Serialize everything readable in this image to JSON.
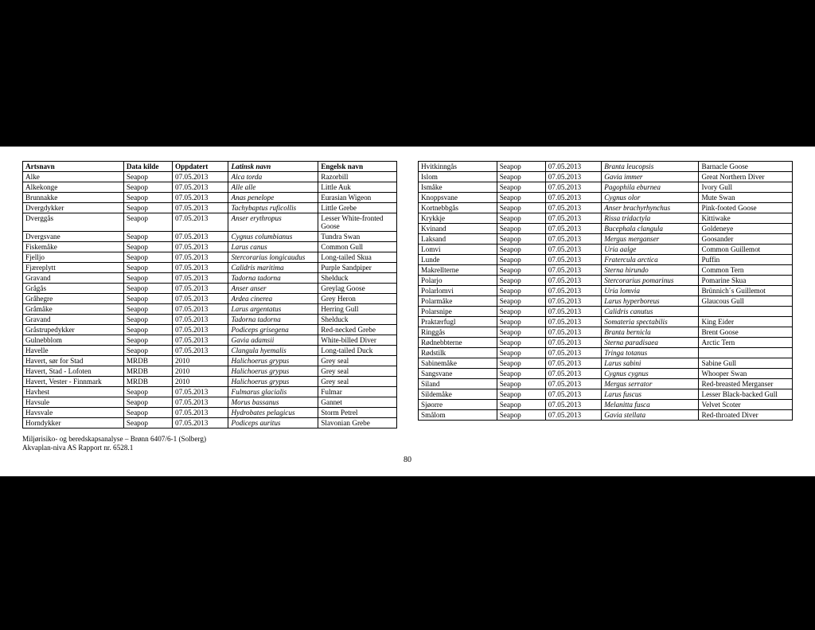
{
  "headers": [
    "Artsnavn",
    "Data kilde",
    "Oppdatert",
    "Latinsk navn",
    "Engelsk navn"
  ],
  "left": [
    [
      "Alke",
      "Seapop",
      "07.05.2013",
      "Alca torda",
      "Razorbill"
    ],
    [
      "Alkekonge",
      "Seapop",
      "07.05.2013",
      "Alle alle",
      "Little Auk"
    ],
    [
      "Brunnakke",
      "Seapop",
      "07.05.2013",
      "Anas penelope",
      "Eurasian Wigeon"
    ],
    [
      "Dvergdykker",
      "Seapop",
      "07.05.2013",
      "Tachybaptus ruficollis",
      "Little Grebe"
    ],
    [
      "Dverggås",
      "Seapop",
      "07.05.2013",
      "Anser erythropus",
      "Lesser White-fronted Goose"
    ],
    [
      "Dvergsvane",
      "Seapop",
      "07.05.2013",
      "Cygnus columbianus",
      "Tundra Swan"
    ],
    [
      "Fiskemåke",
      "Seapop",
      "07.05.2013",
      "Larus canus",
      "Common Gull"
    ],
    [
      "Fjelljo",
      "Seapop",
      "07.05.2013",
      "Stercorarius longicaudus",
      "Long-tailed Skua"
    ],
    [
      "Fjæreplytt",
      "Seapop",
      "07.05.2013",
      "Calidris maritima",
      "Purple Sandpiper"
    ],
    [
      "Gravand",
      "Seapop",
      "07.05.2013",
      "Tadorna tadorna",
      "Shelduck"
    ],
    [
      "Grågås",
      "Seapop",
      "07.05.2013",
      "Anser anser",
      "Greylag Goose"
    ],
    [
      "Gråhegre",
      "Seapop",
      "07.05.2013",
      "Ardea cinerea",
      "Grey Heron"
    ],
    [
      "Gråmåke",
      "Seapop",
      "07.05.2013",
      "Larus argentatus",
      "Herring Gull"
    ],
    [
      "Gravand",
      "Seapop",
      "07.05.2013",
      "Tadorna tadorna",
      "Shelduck"
    ],
    [
      "Gråstrupedykker",
      "Seapop",
      "07.05.2013",
      "Podiceps grisegena",
      "Red-necked Grebe"
    ],
    [
      "Gulnebblom",
      "Seapop",
      "07.05.2013",
      "Gavia adamsii",
      "White-billed Diver"
    ],
    [
      "Havelle",
      "Seapop",
      "07.05.2013",
      "Clangula hyemalis",
      "Long-tailed Duck"
    ],
    [
      "Havert, sør for Stad",
      "MRDB",
      "2010",
      "Halichoerus grypus",
      "Grey seal"
    ],
    [
      "Havert, Stad - Lofoten",
      "MRDB",
      "2010",
      "Halichoerus grypus",
      "Grey seal"
    ],
    [
      "Havert, Vester - Finnmark",
      "MRDB",
      "2010",
      "Halichoerus grypus",
      "Grey seal"
    ],
    [
      "Havhest",
      "Seapop",
      "07.05.2013",
      "Fulmarus glacialis",
      "Fulmar"
    ],
    [
      "Havsule",
      "Seapop",
      "07.05.2013",
      "Morus bassanus",
      "Gannet"
    ],
    [
      "Havsvale",
      "Seapop",
      "07.05.2013",
      "Hydrobates pelagicus",
      "Storm Petrel"
    ],
    [
      "Horndykker",
      "Seapop",
      "07.05.2013",
      "Podiceps auritus",
      "Slavonian Grebe"
    ]
  ],
  "right": [
    [
      "Hvitkinngås",
      "Seapop",
      "07.05.2013",
      "Branta leucopsis",
      "Barnacle Goose"
    ],
    [
      "Islom",
      "Seapop",
      "07.05.2013",
      "Gavia immer",
      "Great Northern Diver"
    ],
    [
      "Ismåke",
      "Seapop",
      "07.05.2013",
      "Pagophila eburnea",
      "Ivory Gull"
    ],
    [
      "Knoppsvane",
      "Seapop",
      "07.05.2013",
      "Cygnus olor",
      "Mute Swan"
    ],
    [
      "Kortnebbgås",
      "Seapop",
      "07.05.2013",
      "Anser brachyrhynchus",
      "Pink-footed Goose"
    ],
    [
      "Krykkje",
      "Seapop",
      "07.05.2013",
      "Rissa tridactyla",
      "Kittiwake"
    ],
    [
      "Kvinand",
      "Seapop",
      "07.05.2013",
      "Bucephala clangula",
      "Goldeneye"
    ],
    [
      "Laksand",
      "Seapop",
      "07.05.2013",
      "Mergus merganser",
      "Goosander"
    ],
    [
      "Lomvi",
      "Seapop",
      "07.05.2013",
      "Uria aalge",
      "Common Guillemot"
    ],
    [
      "Lunde",
      "Seapop",
      "07.05.2013",
      "Fratercula arctica",
      "Puffin"
    ],
    [
      "Makrellterne",
      "Seapop",
      "07.05.2013",
      "Sterna hirundo",
      "Common Tern"
    ],
    [
      "Polarjo",
      "Seapop",
      "07.05.2013",
      "Stercorarius pomarinus",
      "Pomarine Skua"
    ],
    [
      "Polarlomvi",
      "Seapop",
      "07.05.2013",
      "Uria lomvia",
      "Brünnich´s Guillemot"
    ],
    [
      "Polarmåke",
      "Seapop",
      "07.05.2013",
      "Larus hyperboreus",
      "Glaucous Gull"
    ],
    [
      "Polarsnipe",
      "Seapop",
      "07.05.2013",
      "Calidris canutus",
      ""
    ],
    [
      "Praktærfugl",
      "Seapop",
      "07.05.2013",
      "Somateria spectabilis",
      "King Eider"
    ],
    [
      "Ringgås",
      "Seapop",
      "07.05.2013",
      "Branta bernicla",
      "Brent Goose"
    ],
    [
      "Rødnebbterne",
      "Seapop",
      "07.05.2013",
      "Sterna paradisaea",
      "Arctic Tern"
    ],
    [
      "Rødstilk",
      "Seapop",
      "07.05.2013",
      "Tringa totanus",
      ""
    ],
    [
      "Sabinemåke",
      "Seapop",
      "07.05.2013",
      "Larus sabini",
      "Sabine Gull"
    ],
    [
      "Sangsvane",
      "Seapop",
      "07.05.2013",
      "Cygnus cygnus",
      "Whooper Swan"
    ],
    [
      "Siland",
      "Seapop",
      "07.05.2013",
      "Mergus serrator",
      "Red-breasted Merganser"
    ],
    [
      "Sildemåke",
      "Seapop",
      "07.05.2013",
      "Larus fuscus",
      "Lesser Black-backed Gull"
    ],
    [
      "Sjøorre",
      "Seapop",
      "07.05.2013",
      "Melanitta fusca",
      "Velvet Scoter"
    ],
    [
      "Smålom",
      "Seapop",
      "07.05.2013",
      "Gavia stellata",
      "Red-throated Diver"
    ]
  ],
  "footer": {
    "line1": "Miljørisiko- og beredskapsanalyse – Brønn 6407/6-1 (Solberg)",
    "line2": "Akvaplan-niva AS Rapport nr. 6528.1",
    "page": "80"
  },
  "style": {
    "background": "#000000",
    "page_bg": "#ffffff",
    "text_color": "#000000",
    "border_color": "#000000",
    "font_family": "Times New Roman",
    "font_size_pt": 7,
    "header_bold": true,
    "latin_col_italic": true
  }
}
